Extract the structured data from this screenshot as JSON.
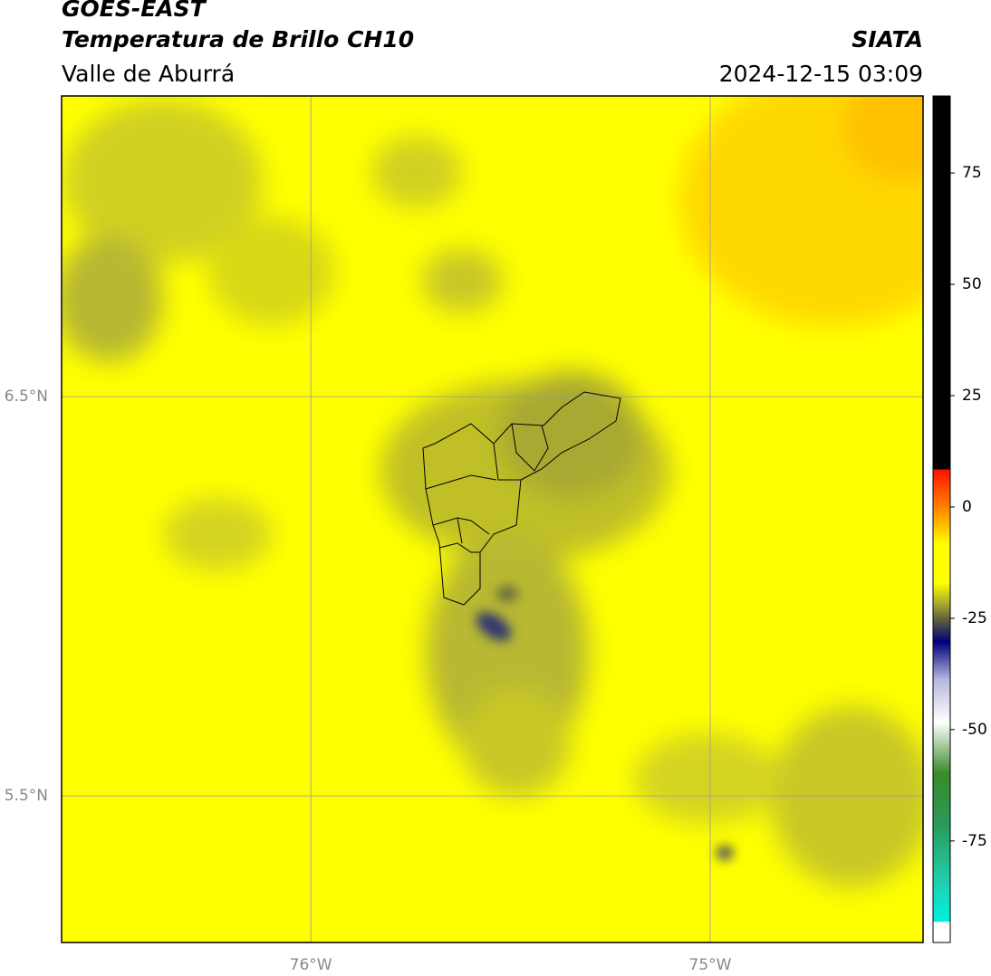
{
  "header": {
    "satellite": "GOES-EAST",
    "product": "Temperatura de Brillo CH10",
    "region": "Valle de Aburrá",
    "source": "SIATA",
    "datetime": "2024-12-15 03:09"
  },
  "map": {
    "lon_range": [
      -76.624,
      -74.467
    ],
    "lat_range": [
      5.133,
      7.253
    ],
    "lon_ticks": [
      {
        "value": -76,
        "label": "76°W"
      },
      {
        "value": -75,
        "label": "75°W"
      }
    ],
    "lat_ticks": [
      {
        "value": 6.5,
        "label": "6.5°N"
      },
      {
        "value": 5.5,
        "label": "5.5°N"
      }
    ]
  },
  "colorbar": {
    "range": [
      -97.8,
      92.3
    ],
    "ticks": [
      75,
      50,
      25,
      0,
      -25,
      -50,
      -75
    ]
  }
}
